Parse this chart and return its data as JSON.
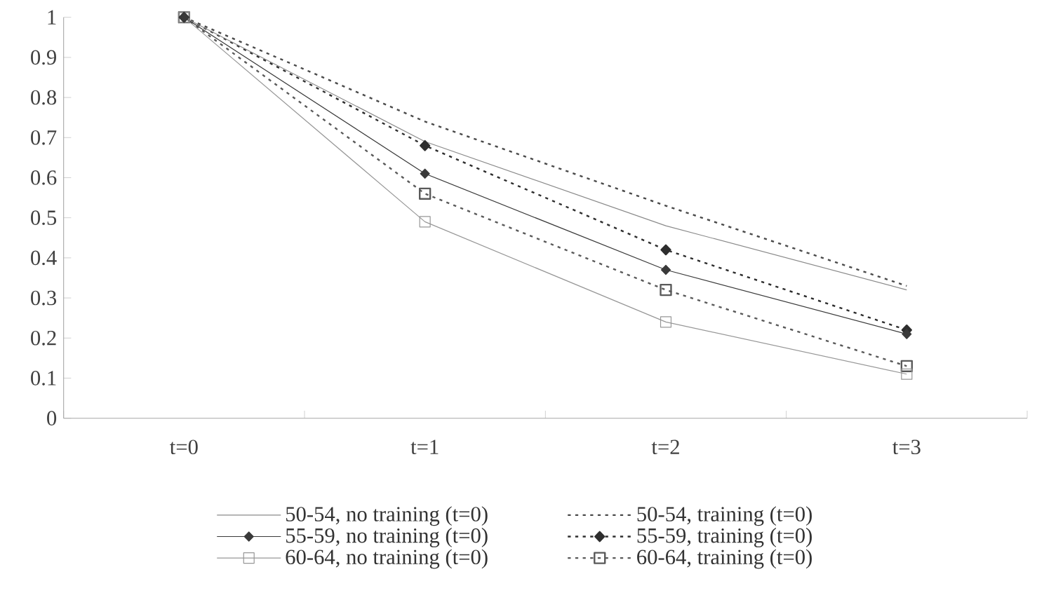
{
  "chart_data": {
    "type": "line",
    "categories": [
      "t=0",
      "t=1",
      "t=2",
      "t=3"
    ],
    "ylim": [
      0,
      1
    ],
    "yticks": [
      0,
      0.1,
      0.2,
      0.3,
      0.4,
      0.5,
      0.6,
      0.7,
      0.8,
      0.9,
      1
    ],
    "grid": false,
    "legend": "bottom",
    "series": [
      {
        "name": "50-54, no training (t=0)",
        "color": "#8a8a8a",
        "line_style": "solid",
        "marker": "none",
        "values": [
          1,
          0.69,
          0.48,
          0.32
        ]
      },
      {
        "name": "50-54, training (t=0)",
        "color": "#4a4a4a",
        "line_style": "dotted",
        "marker": "none",
        "values": [
          1,
          0.74,
          0.53,
          0.33
        ]
      },
      {
        "name": "55-59, no training (t=0)",
        "color": "#3a3a3a",
        "line_style": "solid",
        "marker": "diamond",
        "values": [
          1,
          0.61,
          0.37,
          0.21
        ]
      },
      {
        "name": "55-59, training (t=0)",
        "color": "#2e2e2e",
        "line_style": "dotted",
        "marker": "diamond",
        "values": [
          1,
          0.68,
          0.42,
          0.22
        ]
      },
      {
        "name": "60-64, no training (t=0)",
        "color": "#979797",
        "line_style": "solid",
        "marker": "square",
        "values": [
          1,
          0.49,
          0.24,
          0.11
        ]
      },
      {
        "name": "60-64, training (t=0)",
        "color": "#5a5a5a",
        "line_style": "dotted",
        "marker": "square",
        "values": [
          1,
          0.56,
          0.32,
          0.13
        ]
      }
    ]
  }
}
